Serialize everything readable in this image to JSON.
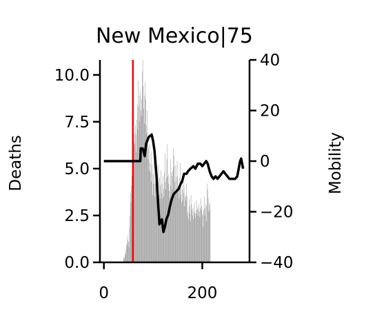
{
  "chart_data": {
    "type": "bar",
    "title": "New Mexico|75",
    "xlabel": "",
    "ylabel": "Deaths",
    "y2label": "Mobility",
    "xlim": [
      -8,
      296
    ],
    "ylim": [
      0,
      10.8
    ],
    "y2lim": [
      -40,
      40
    ],
    "xticks": [
      0,
      200
    ],
    "yticks": [
      "0.0",
      "2.5",
      "5.0",
      "7.5",
      "10.0"
    ],
    "y2ticks": [
      "−40",
      "−20",
      "0",
      "20",
      "40"
    ],
    "grid": false,
    "legend": "none",
    "colors": {
      "bars": "#808080",
      "mobility": "#000000",
      "event_line": "#ff0000",
      "axes": "#000000"
    },
    "event_line_x": 59,
    "deaths_start_day": 40,
    "deaths": [
      0.2,
      0.3,
      0.2,
      0.5,
      0.4,
      0.7,
      0.9,
      1.0,
      1.4,
      1.2,
      1.1,
      0.8,
      1.9,
      2.5,
      3.7,
      3.2,
      4.1,
      4.6,
      5.4,
      6.1,
      5.2,
      6.4,
      6.9,
      6.3,
      7.3,
      6.8,
      5.9,
      7.6,
      8.4,
      7.1,
      9.7,
      8.3,
      7.5,
      8.9,
      9.2,
      8.1,
      7.8,
      8.7,
      10.2,
      10.8,
      9.4,
      8.2,
      7.4,
      8.9,
      9.6,
      8.7,
      7.3,
      6.9,
      8.1,
      6.4,
      5.5,
      6.1,
      4.9,
      6.3,
      5.3,
      4.8,
      4.3,
      5.9,
      5.2,
      3.6,
      4.7,
      4.2,
      5.4,
      3.5,
      4.2,
      4.7,
      4.5,
      4.0,
      3.5,
      4.1,
      3.9,
      5.2,
      3.6,
      4.5,
      3.4,
      4.1,
      4.9,
      3.7,
      4.2,
      3.4,
      4.6,
      3.9,
      3.5,
      4.8,
      5.8,
      4.3,
      3.9,
      4.5,
      5.5,
      6.3,
      4.6,
      4.2,
      4.7,
      3.8,
      3.4,
      4.1,
      5.5,
      4.8,
      3.9,
      4.6,
      4.9,
      6.1,
      5.1,
      5.7,
      4.3,
      3.8,
      5.2,
      4.5,
      3.7,
      5.4,
      4.6,
      3.8,
      4.1,
      3.4,
      4.5,
      5.3,
      3.6,
      4.0,
      3.2,
      3.9,
      3.3,
      4.8,
      3.7,
      4.1,
      3.0,
      3.5,
      3.6,
      3.3,
      4.2,
      3.5,
      2.5,
      2.7,
      2.3,
      3.4,
      3.0,
      2.6,
      2.2,
      3.6,
      3.1,
      2.8,
      2.5,
      2.9,
      2.3,
      2.7,
      3.2,
      2.6,
      2.4,
      2.8,
      2.6,
      3.3,
      2.9,
      2.5,
      2.8,
      3.1,
      2.7,
      2.4,
      2.9,
      3.4,
      2.8,
      3.0,
      2.5,
      2.6,
      1.9,
      2.8,
      3.5,
      2.9,
      2.5,
      3.1,
      2.2,
      3.0,
      4.2,
      3.9,
      3.4,
      2.7,
      3.1,
      2.8,
      3.2
    ],
    "mobility": [
      {
        "x": 0,
        "y": 0
      },
      {
        "x": 74,
        "y": 0
      },
      {
        "x": 75,
        "y": 5
      },
      {
        "x": 79,
        "y": 5
      },
      {
        "x": 83,
        "y": 2
      },
      {
        "x": 86,
        "y": 7
      },
      {
        "x": 91,
        "y": 9.5
      },
      {
        "x": 97,
        "y": 10.5
      },
      {
        "x": 100,
        "y": 8
      },
      {
        "x": 103,
        "y": 4
      },
      {
        "x": 107,
        "y": -6
      },
      {
        "x": 110,
        "y": -16
      },
      {
        "x": 113,
        "y": -25
      },
      {
        "x": 115,
        "y": -24
      },
      {
        "x": 118,
        "y": -23
      },
      {
        "x": 121,
        "y": -28
      },
      {
        "x": 124,
        "y": -26
      },
      {
        "x": 127,
        "y": -23
      },
      {
        "x": 131,
        "y": -21
      },
      {
        "x": 134,
        "y": -18
      },
      {
        "x": 138,
        "y": -15
      },
      {
        "x": 142,
        "y": -13
      },
      {
        "x": 147,
        "y": -12
      },
      {
        "x": 152,
        "y": -11
      },
      {
        "x": 156,
        "y": -9
      },
      {
        "x": 159,
        "y": -8
      },
      {
        "x": 163,
        "y": -5
      },
      {
        "x": 168,
        "y": -5
      },
      {
        "x": 171,
        "y": -4
      },
      {
        "x": 176,
        "y": -3
      },
      {
        "x": 182,
        "y": -2
      },
      {
        "x": 186,
        "y": -3
      },
      {
        "x": 191,
        "y": -1
      },
      {
        "x": 196,
        "y": -1
      },
      {
        "x": 200,
        "y": -2
      },
      {
        "x": 204,
        "y": -1
      },
      {
        "x": 208,
        "y": 0
      },
      {
        "x": 211,
        "y": -1
      },
      {
        "x": 215,
        "y": -4
      },
      {
        "x": 219,
        "y": -6
      },
      {
        "x": 223,
        "y": -7
      },
      {
        "x": 227,
        "y": -6
      },
      {
        "x": 231,
        "y": -7
      },
      {
        "x": 235,
        "y": -6
      },
      {
        "x": 239,
        "y": -5
      },
      {
        "x": 243,
        "y": -4
      },
      {
        "x": 247,
        "y": -5
      },
      {
        "x": 251,
        "y": -6
      },
      {
        "x": 255,
        "y": -7
      },
      {
        "x": 259,
        "y": -7
      },
      {
        "x": 263,
        "y": -7
      },
      {
        "x": 267,
        "y": -7
      },
      {
        "x": 271,
        "y": -6
      },
      {
        "x": 274,
        "y": -3
      },
      {
        "x": 277,
        "y": 0
      },
      {
        "x": 279,
        "y": 1
      },
      {
        "x": 281,
        "y": -1
      },
      {
        "x": 283,
        "y": -3
      }
    ]
  }
}
